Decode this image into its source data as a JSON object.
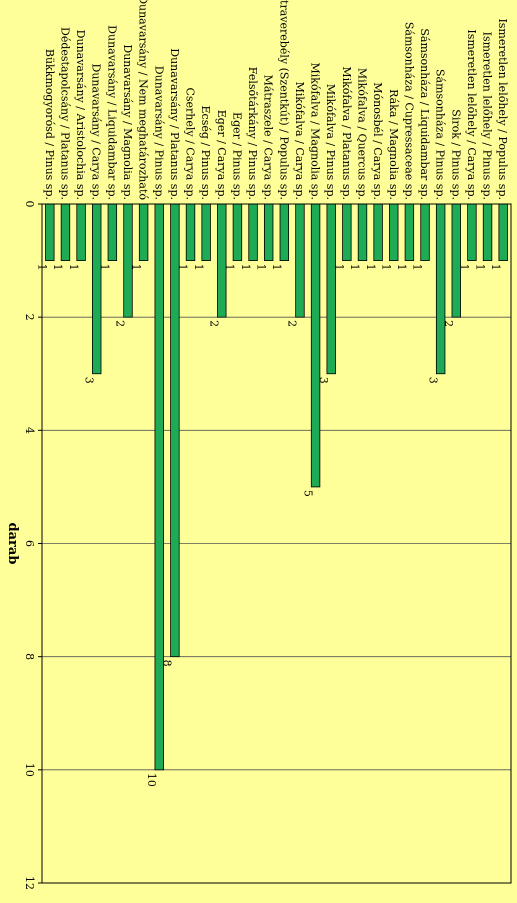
{
  "chart_data": {
    "type": "bar",
    "orientation": "horizontal",
    "ylabel": "darab",
    "ylim": [
      0,
      12
    ],
    "yticks": [
      0,
      2,
      4,
      6,
      8,
      10,
      12
    ],
    "grid": true,
    "legend": "none",
    "categories": [
      "Ismeretlen lelőhely / Populus sp.",
      "Ismeretlen lelőhely / Pinus sp.",
      "Ismeretlen lelőhely / Carya sp.",
      "Sirok / Pinus sp.",
      "Sámsonháza / Pinus sp.",
      "Sámsonháza / Liquidambar sp.",
      "Sámsonháza / Cupressaceae sp.",
      "Rákа / Magnolia sp.",
      "Mónosbél / Carya sp.",
      "Mikófalva / Quercus sp.",
      "Mikófalva / Platanus sp.",
      "Mikófalva / Pinus sp.",
      "Mikófalva / Magnolia sp.",
      "Mikófalva / Carya sp.",
      "Mátraverebély (Szentkút) / Populus sp.",
      "Mátraszele / Carya sp.",
      "Felsőtárkány / Pinus sp.",
      "Eger / Pinus sp.",
      "Eger / Carya sp.",
      "Ecség / Pinus sp.",
      "Cserhely / Carya sp.",
      "Dunavarsány / Platanus sp.",
      "Dunavarsány / Pinus sp.",
      "Dunavarsány / Nem meghatározható",
      "Dunavarsány / Magnolia sp.",
      "Dunavarsány / Liquidambar sp.",
      "Dunavarsány / Carya sp.",
      "Dunavarsány / Aristolochia sp.",
      "Dédestapolcsány / Platanus sp.",
      "Bükkmogyorósd / Pinus sp."
    ],
    "values": [
      1,
      1,
      1,
      2,
      3,
      1,
      1,
      1,
      1,
      1,
      1,
      3,
      5,
      2,
      1,
      1,
      1,
      1,
      2,
      1,
      1,
      8,
      10,
      1,
      2,
      1,
      3,
      1,
      1,
      1
    ],
    "colors": {
      "background": "#ffff99",
      "bar": "#1faa55",
      "bar_edge": "#000000",
      "grid": "#555555"
    }
  }
}
